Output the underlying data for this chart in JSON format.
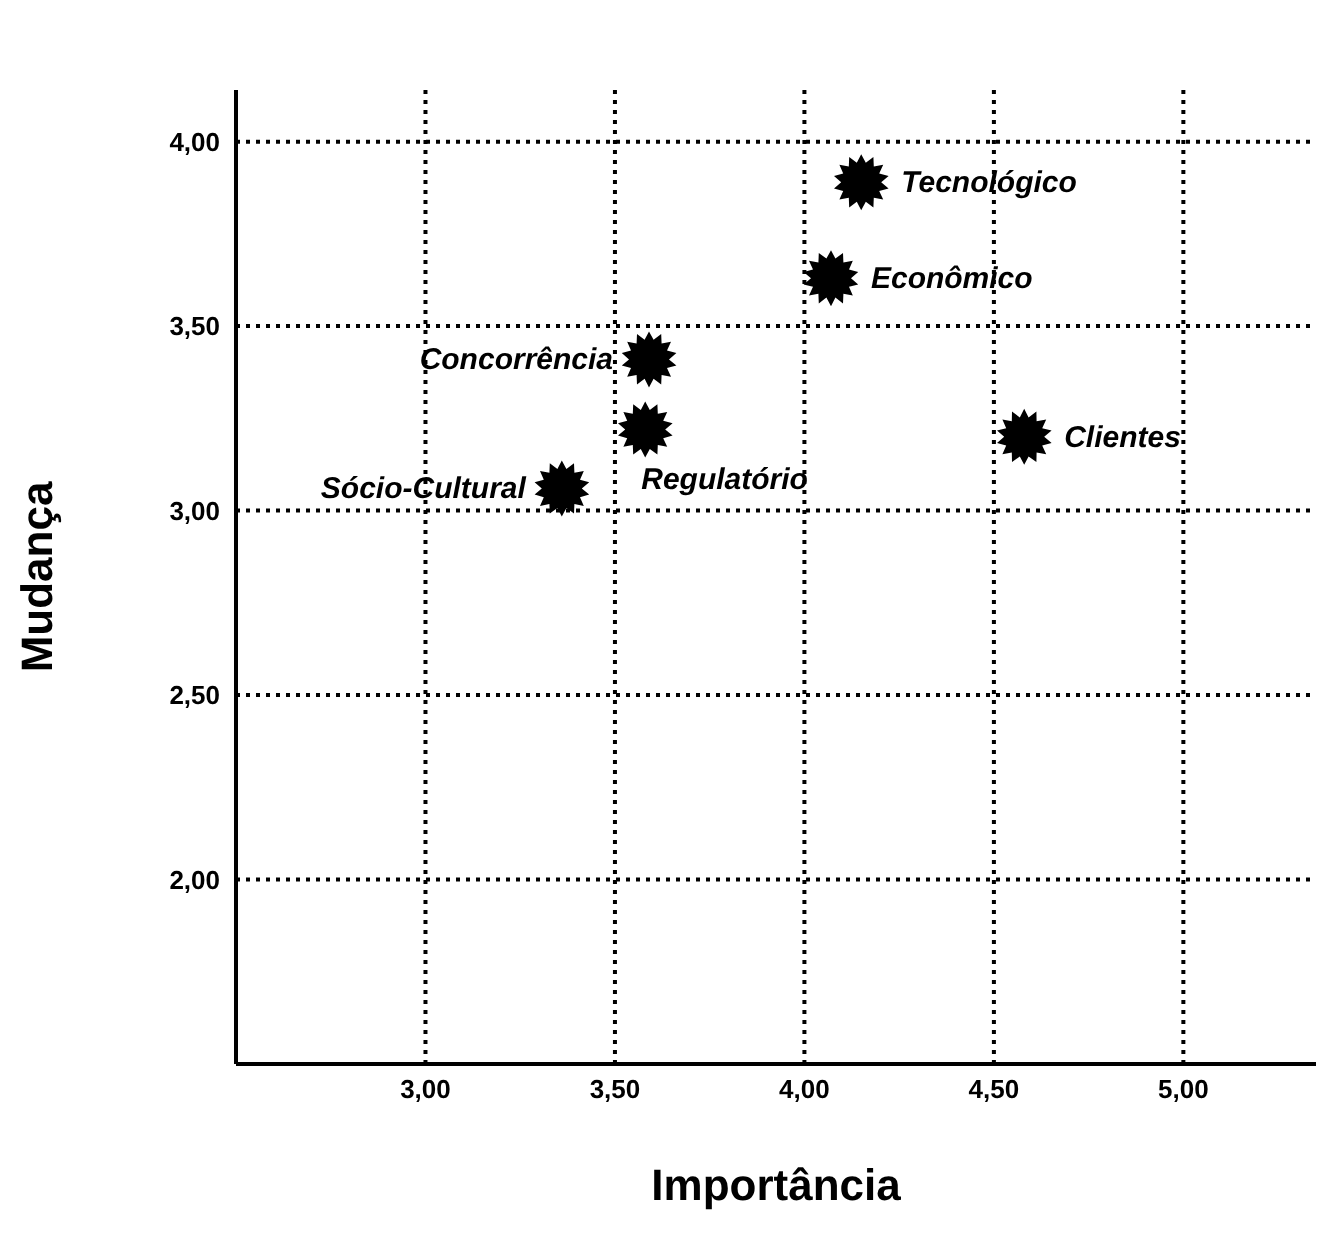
{
  "chart_data": {
    "type": "scatter",
    "xlabel": "Importância",
    "ylabel": "Mudança",
    "x": [
      4.15,
      4.07,
      3.59,
      3.58,
      4.58,
      3.36
    ],
    "values": [
      3.89,
      3.63,
      3.41,
      3.22,
      3.2,
      3.06
    ],
    "color": "#000000",
    "marker": "star",
    "grid": true,
    "line_style": "dotted",
    "xlim": [
      2.5,
      5.35
    ],
    "ylim": [
      1.5,
      4.14
    ],
    "xticks": [
      {
        "value": 3,
        "label": "3,00"
      },
      {
        "value": 3.5,
        "label": "3,50"
      },
      {
        "value": 4,
        "label": "4,00"
      },
      {
        "value": 4.5,
        "label": "4,50"
      },
      {
        "value": 5,
        "label": "5,00"
      }
    ],
    "yticks": [
      {
        "value": 2,
        "label": "2,00"
      },
      {
        "value": 2.5,
        "label": "2,50"
      },
      {
        "value": 3,
        "label": "3,00"
      },
      {
        "value": 3.5,
        "label": "3,50"
      },
      {
        "value": 4,
        "label": "4,00"
      }
    ],
    "annotations": [
      {
        "text": "Tecnológico",
        "x": 4.15,
        "y": 3.89
      },
      {
        "text": "Econômico",
        "x": 4.07,
        "y": 3.63
      },
      {
        "text": "Concorrência",
        "x": 3.59,
        "y": 3.41
      },
      {
        "text": "Regulatório",
        "x": 3.58,
        "y": 3.22
      },
      {
        "text": "Clientes",
        "x": 4.58,
        "y": 3.2
      },
      {
        "text": "Sócio-Cultural",
        "x": 3.36,
        "y": 3.06
      }
    ]
  }
}
